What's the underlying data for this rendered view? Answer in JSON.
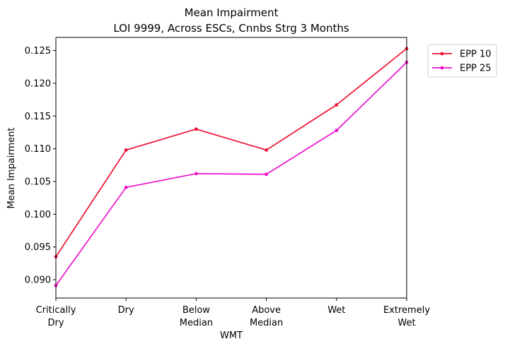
{
  "chart_data": {
    "type": "line",
    "title": "Mean Impairment",
    "subtitle": "LOI 9999, Across ESCs, Cnnbs Strg 3 Months",
    "xlabel": "WMT",
    "ylabel": "Mean Impairment",
    "categories": [
      [
        "Critically",
        "Dry"
      ],
      [
        "Dry"
      ],
      [
        "Below",
        "Median"
      ],
      [
        "Above",
        "Median"
      ],
      [
        "Wet"
      ],
      [
        "Extremely",
        "Wet"
      ]
    ],
    "yticks": [
      "0.090",
      "0.095",
      "0.100",
      "0.105",
      "0.110",
      "0.115",
      "0.120",
      "0.125"
    ],
    "ylim": [
      0.0872,
      0.127
    ],
    "grid": false,
    "legend_position": "outside-top-right",
    "series": [
      {
        "name": "EPP 10",
        "color": "#ee1133",
        "values": [
          0.0935,
          0.1098,
          0.113,
          0.1098,
          0.1167,
          0.1253
        ]
      },
      {
        "name": "EPP 25",
        "color": "#ee11cc",
        "values": [
          0.0891,
          0.1041,
          0.1062,
          0.1061,
          0.1128,
          0.1232
        ]
      }
    ]
  }
}
